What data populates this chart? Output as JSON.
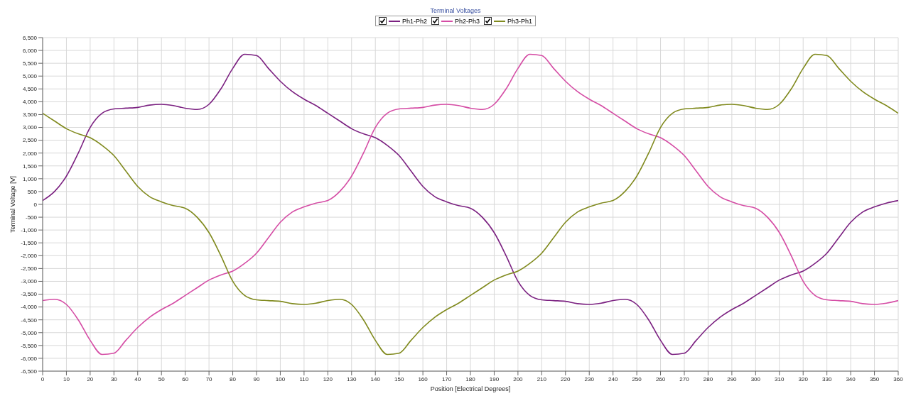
{
  "chart_data": {
    "type": "line",
    "title": "Terminal Voltages",
    "xlabel": "Position [Electrical Degrees]",
    "ylabel": "Terminal Voltage [V]",
    "grid": true,
    "legend": "top",
    "x": [
      0,
      5,
      10,
      15,
      20,
      25,
      30,
      35,
      40,
      45,
      50,
      55,
      60,
      65,
      70,
      75,
      80,
      85,
      90,
      95,
      100,
      105,
      110,
      115,
      120,
      125,
      130,
      135,
      140,
      145,
      150,
      155,
      160,
      165,
      170,
      175,
      180,
      185,
      190,
      195,
      200,
      205,
      210,
      215,
      220,
      225,
      230,
      235,
      240,
      245,
      250,
      255,
      260,
      265,
      270,
      275,
      280,
      285,
      290,
      295,
      300,
      305,
      310,
      315,
      320,
      325,
      330,
      335,
      340,
      345,
      350,
      355,
      360
    ],
    "xlim": [
      0,
      360
    ],
    "xticks": [
      0,
      10,
      20,
      30,
      40,
      50,
      60,
      70,
      80,
      90,
      100,
      110,
      120,
      130,
      140,
      150,
      160,
      170,
      180,
      190,
      200,
      210,
      220,
      230,
      240,
      250,
      260,
      270,
      280,
      290,
      300,
      310,
      320,
      330,
      340,
      350,
      360
    ],
    "ylim": [
      -6500,
      6500
    ],
    "yticks": [
      {
        "value": -6500,
        "label": "-6,500"
      },
      {
        "value": -6000,
        "label": "-6,000"
      },
      {
        "value": -5500,
        "label": "-5,500"
      },
      {
        "value": -5000,
        "label": "-5,000"
      },
      {
        "value": -4500,
        "label": "-4,500"
      },
      {
        "value": -4000,
        "label": "-4,000"
      },
      {
        "value": -3500,
        "label": "-3,500"
      },
      {
        "value": -3000,
        "label": "-3,000"
      },
      {
        "value": -2500,
        "label": "-2,500"
      },
      {
        "value": -2000,
        "label": "-2,000"
      },
      {
        "value": -1500,
        "label": "-1,500"
      },
      {
        "value": -1000,
        "label": "-1,000"
      },
      -500,
      0,
      500,
      {
        "value": 1000,
        "label": "1,000"
      },
      {
        "value": 1500,
        "label": "1,500"
      },
      {
        "value": 2000,
        "label": "2,000"
      },
      {
        "value": 2500,
        "label": "2,500"
      },
      {
        "value": 3000,
        "label": "3,000"
      },
      {
        "value": 3500,
        "label": "3,500"
      },
      {
        "value": 4000,
        "label": "4,000"
      },
      {
        "value": 4500,
        "label": "4,500"
      },
      {
        "value": 5000,
        "label": "5,000"
      },
      {
        "value": 5500,
        "label": "5,500"
      },
      {
        "value": 6000,
        "label": "6,000"
      },
      {
        "value": 6500,
        "label": "6,500"
      }
    ],
    "series": [
      {
        "name": "Ph1-Ph2",
        "color": "#7b2181",
        "values": [
          150,
          500,
          1100,
          2000,
          3000,
          3550,
          3720,
          3750,
          3780,
          3870,
          3900,
          3850,
          3750,
          3700,
          3900,
          4500,
          5300,
          5850,
          5800,
          5300,
          4800,
          4400,
          4100,
          3850,
          3550,
          3250,
          2950,
          2750,
          2600,
          2300,
          1900,
          1300,
          700,
          300,
          100,
          -50,
          -150,
          -500,
          -1100,
          -2000,
          -3000,
          -3550,
          -3720,
          -3750,
          -3780,
          -3870,
          -3900,
          -3850,
          -3750,
          -3700,
          -3900,
          -4500,
          -5300,
          -5850,
          -5800,
          -5300,
          -4800,
          -4400,
          -4100,
          -3850,
          -3550,
          -3250,
          -2950,
          -2750,
          -2600,
          -2300,
          -1900,
          -1300,
          -700,
          -300,
          -100,
          50,
          150
        ]
      },
      {
        "name": "Ph2-Ph3",
        "color": "#d54da5",
        "values": [
          -3750,
          -3700,
          -3900,
          -4500,
          -5300,
          -5850,
          -5800,
          -5300,
          -4800,
          -4400,
          -4100,
          -3850,
          -3550,
          -3250,
          -2950,
          -2750,
          -2600,
          -2300,
          -1900,
          -1300,
          -700,
          -300,
          -100,
          50,
          150,
          500,
          1100,
          2000,
          3000,
          3550,
          3720,
          3750,
          3780,
          3870,
          3900,
          3850,
          3750,
          3700,
          3900,
          4500,
          5300,
          5850,
          5800,
          5300,
          4800,
          4400,
          4100,
          3850,
          3550,
          3250,
          2950,
          2750,
          2600,
          2300,
          1900,
          1300,
          700,
          300,
          100,
          -50,
          -150,
          -500,
          -1100,
          -2000,
          -3000,
          -3550,
          -3720,
          -3750,
          -3780,
          -3870,
          -3900,
          -3850,
          -3750
        ]
      },
      {
        "name": "Ph3-Ph1",
        "color": "#808a1e",
        "values": [
          3550,
          3250,
          2950,
          2750,
          2600,
          2300,
          1900,
          1300,
          700,
          300,
          100,
          -50,
          -150,
          -500,
          -1100,
          -2000,
          -3000,
          -3550,
          -3720,
          -3750,
          -3780,
          -3870,
          -3900,
          -3850,
          -3750,
          -3700,
          -3900,
          -4500,
          -5300,
          -5850,
          -5800,
          -5300,
          -4800,
          -4400,
          -4100,
          -3850,
          -3550,
          -3250,
          -2950,
          -2750,
          -2600,
          -2300,
          -1900,
          -1300,
          -700,
          -300,
          -100,
          50,
          150,
          500,
          1100,
          2000,
          3000,
          3550,
          3720,
          3750,
          3780,
          3870,
          3900,
          3850,
          3750,
          3700,
          3900,
          4500,
          5300,
          5850,
          5800,
          5300,
          4800,
          4400,
          4100,
          3850,
          3550
        ]
      }
    ]
  }
}
